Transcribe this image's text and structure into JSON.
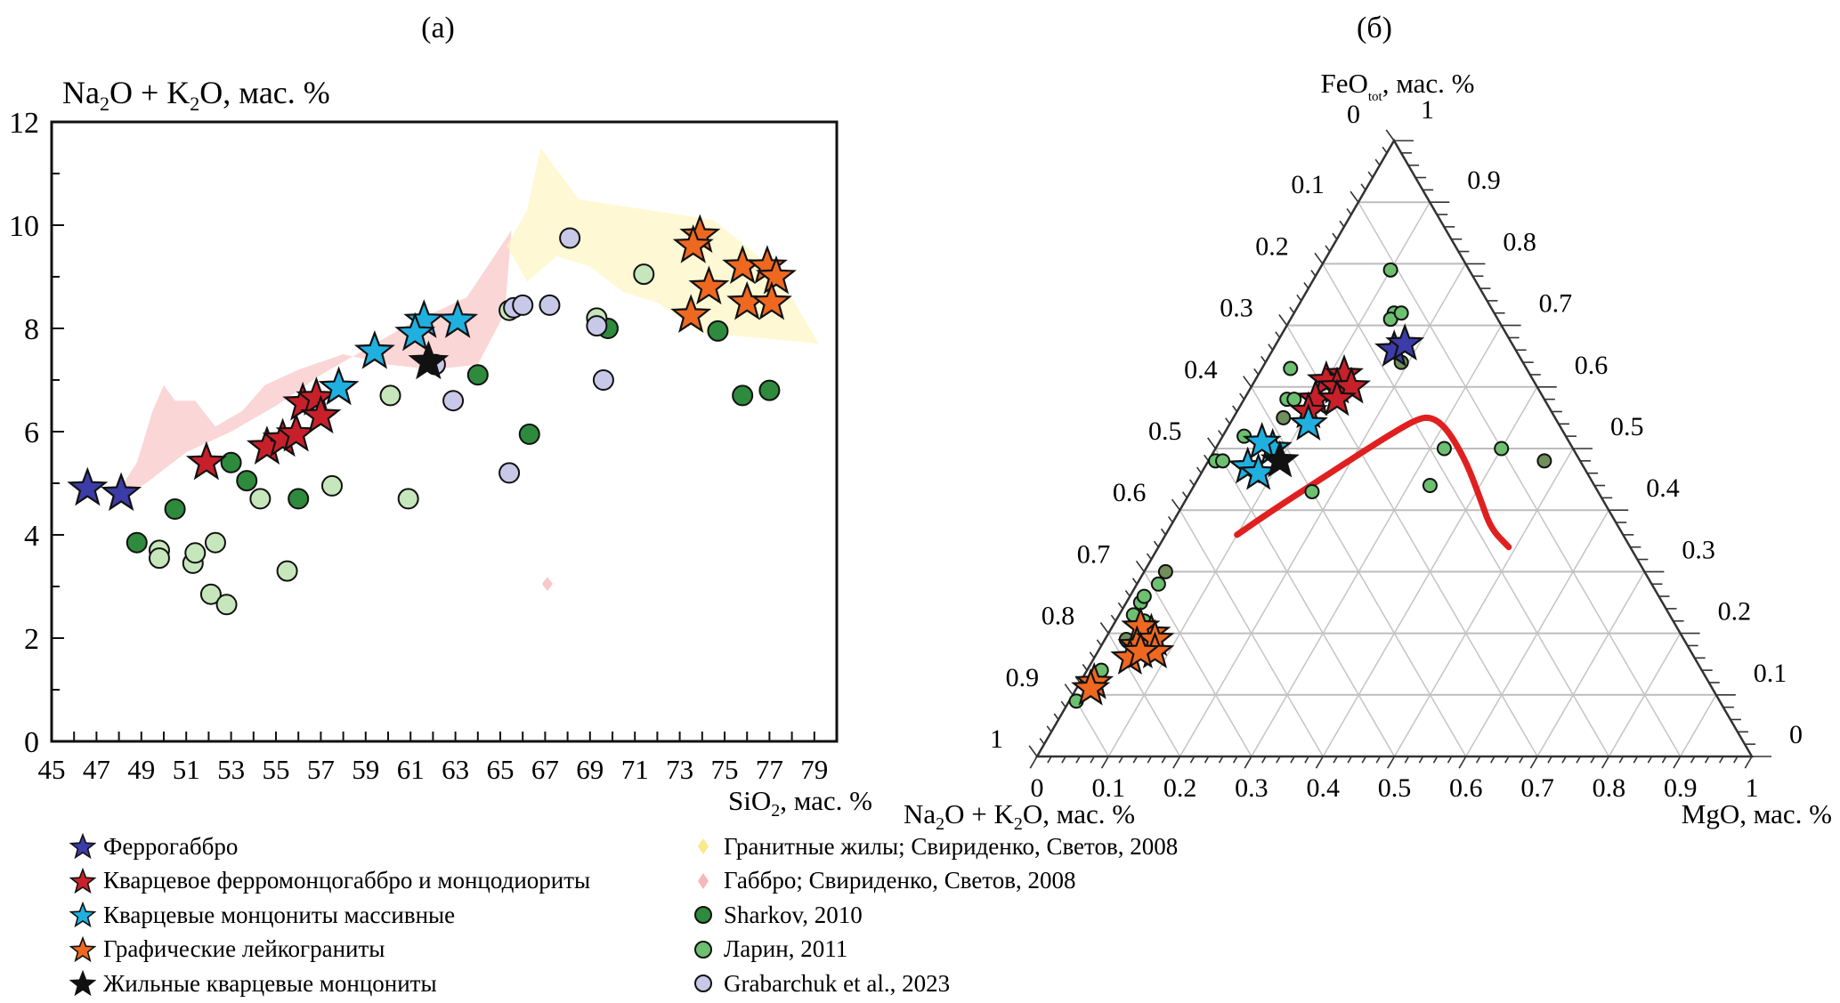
{
  "chart_data": [
    {
      "type": "scatter",
      "panel_label": "(a)",
      "title": "",
      "ylabel": "Na2O + K2O, мас. %",
      "ylabel_parts": {
        "a": "Na",
        "a_sub": "2",
        "b": "O + K",
        "b_sub": "2",
        "c": "O, мас. %"
      },
      "xlabel": "SiO2, мас. %",
      "xlabel_parts": {
        "a": "SiO",
        "a_sub": "2",
        "b": ", мас. %"
      },
      "xlim": [
        45,
        80
      ],
      "ylim": [
        0,
        12
      ],
      "xticks": [
        45,
        47,
        49,
        51,
        53,
        55,
        57,
        59,
        61,
        63,
        65,
        67,
        69,
        71,
        73,
        75,
        77,
        79
      ],
      "yticks": [
        0,
        2,
        4,
        6,
        8,
        10,
        12
      ],
      "grid": false,
      "fields": [
        {
          "name": "Габбро; Свириденко, Светов, 2008",
          "color": "#f9c8c8",
          "outline": [
            [
              47.6,
              4.6
            ],
            [
              49.2,
              5.0
            ],
            [
              51.0,
              5.6
            ],
            [
              53.0,
              6.0
            ],
            [
              55.0,
              6.5
            ],
            [
              57.0,
              7.1
            ],
            [
              59.0,
              7.6
            ],
            [
              61.0,
              8.1
            ],
            [
              63.5,
              8.6
            ],
            [
              65.5,
              9.9
            ],
            [
              65.2,
              8.3
            ],
            [
              64.0,
              7.3
            ],
            [
              62.0,
              7.2
            ],
            [
              60.0,
              7.3
            ],
            [
              58.0,
              7.5
            ],
            [
              56.0,
              7.2
            ],
            [
              54.5,
              6.9
            ],
            [
              53.5,
              6.4
            ],
            [
              52.3,
              6.1
            ],
            [
              51.4,
              6.6
            ],
            [
              50.5,
              6.6
            ],
            [
              50.0,
              6.9
            ],
            [
              49.5,
              6.4
            ],
            [
              48.8,
              5.4
            ],
            [
              47.6,
              4.6
            ]
          ]
        },
        {
          "name": "Гранитные жилы; Свириденко, Светов, 2008",
          "color": "#fdf5c6",
          "outline": [
            [
              65.3,
              9.6
            ],
            [
              66.2,
              10.3
            ],
            [
              66.8,
              11.5
            ],
            [
              68.5,
              10.5
            ],
            [
              71.5,
              10.3
            ],
            [
              74.5,
              10.1
            ],
            [
              76.5,
              9.4
            ],
            [
              78.0,
              8.6
            ],
            [
              79.2,
              7.7
            ],
            [
              77.0,
              7.8
            ],
            [
              74.0,
              7.9
            ],
            [
              72.0,
              8.5
            ],
            [
              70.5,
              8.7
            ],
            [
              69.0,
              9.2
            ],
            [
              67.5,
              9.4
            ],
            [
              66.2,
              8.9
            ],
            [
              65.3,
              9.6
            ]
          ]
        }
      ],
      "series": [
        {
          "name": "Феррогаббро",
          "marker": "star",
          "color": "#3c3ca8",
          "points": [
            [
              46.6,
              4.9
            ],
            [
              48.1,
              4.8
            ]
          ]
        },
        {
          "name": "Кварцевое ферромонцогаббро и монцодиориты",
          "marker": "star",
          "color": "#c8202a",
          "points": [
            [
              51.9,
              5.4
            ],
            [
              54.6,
              5.7
            ],
            [
              55.3,
              5.85
            ],
            [
              55.9,
              5.95
            ],
            [
              56.2,
              6.55
            ],
            [
              56.8,
              6.65
            ],
            [
              57.0,
              6.3
            ]
          ]
        },
        {
          "name": "Кварцевые монцониты массивные",
          "marker": "star",
          "color": "#1fb0e0",
          "points": [
            [
              57.8,
              6.85
            ],
            [
              59.4,
              7.55
            ],
            [
              61.6,
              8.15
            ],
            [
              61.2,
              7.9
            ],
            [
              63.1,
              8.15
            ]
          ]
        },
        {
          "name": "Графические лейкограниты",
          "marker": "star",
          "color": "#ee6820",
          "points": [
            [
              73.9,
              9.8
            ],
            [
              73.6,
              9.6
            ],
            [
              74.3,
              8.8
            ],
            [
              73.5,
              8.25
            ],
            [
              75.8,
              9.2
            ],
            [
              76.9,
              9.2
            ],
            [
              77.3,
              9.0
            ],
            [
              76.0,
              8.5
            ],
            [
              77.1,
              8.5
            ]
          ]
        },
        {
          "name": "Жильные кварцевые монцониты",
          "marker": "star",
          "color": "#111111",
          "points": [
            [
              61.8,
              7.35
            ]
          ]
        },
        {
          "name": "Sharkov, 2010",
          "marker": "circle",
          "color": "#2e8a3c",
          "points": [
            [
              48.8,
              3.85
            ],
            [
              50.5,
              4.5
            ],
            [
              53.0,
              5.4
            ],
            [
              53.7,
              5.05
            ],
            [
              56.0,
              4.7
            ],
            [
              64.0,
              7.1
            ],
            [
              66.3,
              5.95
            ],
            [
              69.8,
              8.0
            ],
            [
              74.7,
              7.95
            ],
            [
              75.8,
              6.7
            ],
            [
              77.0,
              6.8
            ]
          ]
        },
        {
          "name": "Ларин, 2011",
          "marker": "circle",
          "color": "#c6e6bc",
          "points": [
            [
              49.8,
              3.7
            ],
            [
              49.8,
              3.55
            ],
            [
              51.3,
              3.45
            ],
            [
              51.4,
              3.65
            ],
            [
              52.1,
              2.85
            ],
            [
              52.3,
              3.85
            ],
            [
              52.8,
              2.65
            ],
            [
              54.3,
              4.7
            ],
            [
              55.5,
              3.3
            ],
            [
              57.5,
              4.95
            ],
            [
              60.1,
              6.7
            ],
            [
              60.9,
              4.7
            ],
            [
              65.4,
              8.35
            ],
            [
              69.3,
              8.2
            ],
            [
              71.4,
              9.05
            ]
          ]
        },
        {
          "name": "Grabarchuk et al., 2023",
          "marker": "circle",
          "color": "#c8c8e8",
          "points": [
            [
              62.1,
              7.3
            ],
            [
              62.9,
              6.6
            ],
            [
              65.6,
              8.4
            ],
            [
              66.0,
              8.45
            ],
            [
              67.2,
              8.45
            ],
            [
              65.4,
              5.2
            ],
            [
              68.1,
              9.75
            ],
            [
              69.3,
              8.05
            ],
            [
              69.6,
              7.0
            ]
          ]
        }
      ],
      "outliers": [
        {
          "series": "Габбро; Свириденко, Светов, 2008",
          "points": [
            [
              67.1,
              3.05
            ]
          ]
        }
      ]
    },
    {
      "type": "scatter",
      "subtype": "ternary",
      "panel_label": "(б)",
      "apex_top_label": "FeOtot, мас. %",
      "apex_top_parts": {
        "a": "FeO",
        "a_sub": "tot",
        "b": ", мас. %"
      },
      "bottom_left_label": "Na2O + K2O, мас. %",
      "bottom_left_parts": {
        "a": "Na",
        "a_sub": "2",
        "b": "O + K",
        "b_sub": "2",
        "c": "O, мас. %"
      },
      "bottom_right_label": "MgO, мас. %",
      "axis_ticks": [
        "0",
        "0.1",
        "0.2",
        "0.3",
        "0.4",
        "0.5",
        "0.6",
        "0.7",
        "0.8",
        "0.9",
        "1"
      ],
      "grid": true,
      "components_order": [
        "FeO",
        "MgO",
        "NaK"
      ],
      "boundary_line": {
        "color": "#e02020",
        "points": [
          [
            0.36,
            0.1,
            0.54
          ],
          [
            0.4,
            0.13,
            0.47
          ],
          [
            0.46,
            0.18,
            0.36
          ],
          [
            0.52,
            0.23,
            0.25
          ],
          [
            0.55,
            0.26,
            0.19
          ],
          [
            0.55,
            0.28,
            0.17
          ],
          [
            0.53,
            0.31,
            0.16
          ],
          [
            0.48,
            0.36,
            0.16
          ],
          [
            0.42,
            0.41,
            0.17
          ],
          [
            0.37,
            0.45,
            0.18
          ],
          [
            0.34,
            0.49,
            0.17
          ]
        ]
      },
      "series": [
        {
          "name": "Феррогаббро",
          "marker": "star",
          "color": "#3c3ca8",
          "points": [
            [
              0.66,
              0.17,
              0.17
            ],
            [
              0.67,
              0.18,
              0.15
            ]
          ]
        },
        {
          "name": "Кварцевое ферромонцогаббро и монцодиориты",
          "marker": "star",
          "color": "#c8202a",
          "points": [
            [
              0.61,
              0.1,
              0.29
            ],
            [
              0.62,
              0.12,
              0.26
            ],
            [
              0.6,
              0.12,
              0.28
            ],
            [
              0.58,
              0.1,
              0.32
            ],
            [
              0.56,
              0.1,
              0.34
            ],
            [
              0.6,
              0.14,
              0.26
            ],
            [
              0.58,
              0.13,
              0.29
            ]
          ]
        },
        {
          "name": "Кварцевые монцониты массивные",
          "marker": "star",
          "color": "#1fb0e0",
          "points": [
            [
              0.54,
              0.11,
              0.35
            ],
            [
              0.5,
              0.08,
              0.42
            ],
            [
              0.51,
              0.06,
              0.43
            ],
            [
              0.47,
              0.06,
              0.47
            ],
            [
              0.46,
              0.08,
              0.46
            ]
          ]
        },
        {
          "name": "Графические лейкограниты",
          "marker": "star",
          "color": "#ee6820",
          "points": [
            [
              0.2,
              0.06,
              0.74
            ],
            [
              0.21,
              0.04,
              0.75
            ],
            [
              0.18,
              0.05,
              0.77
            ],
            [
              0.16,
              0.05,
              0.79
            ],
            [
              0.19,
              0.07,
              0.74
            ],
            [
              0.17,
              0.08,
              0.75
            ],
            [
              0.17,
              0.06,
              0.77
            ],
            [
              0.12,
              0.02,
              0.86
            ],
            [
              0.11,
              0.02,
              0.87
            ]
          ]
        },
        {
          "name": "Жильные кварцевые монцониты",
          "marker": "star",
          "color": "#111111",
          "points": [
            [
              0.48,
              0.1,
              0.42
            ]
          ]
        },
        {
          "name": "Sharkov, 2010",
          "marker": "circle",
          "color": "#6f8f5c",
          "points": [
            [
              0.64,
              0.19,
              0.17
            ],
            [
              0.48,
              0.47,
              0.05
            ],
            [
              0.55,
              0.07,
              0.38
            ],
            [
              0.3,
              0.03,
              0.67
            ],
            [
              0.19,
              0.03,
              0.78
            ]
          ]
        },
        {
          "name": "Ларин, 2011",
          "marker": "circle",
          "color": "#6cc070",
          "points": [
            [
              0.79,
              0.1,
              0.11
            ],
            [
              0.72,
              0.14,
              0.14
            ],
            [
              0.71,
              0.14,
              0.15
            ],
            [
              0.72,
              0.15,
              0.13
            ],
            [
              0.63,
              0.04,
              0.33
            ],
            [
              0.58,
              0.06,
              0.36
            ],
            [
              0.58,
              0.07,
              0.35
            ],
            [
              0.52,
              0.03,
              0.45
            ],
            [
              0.48,
              0.01,
              0.51
            ],
            [
              0.48,
              0.02,
              0.5
            ],
            [
              0.5,
              0.32,
              0.18
            ],
            [
              0.5,
              0.4,
              0.1
            ],
            [
              0.44,
              0.33,
              0.23
            ],
            [
              0.43,
              0.17,
              0.4
            ],
            [
              0.28,
              0.03,
              0.69
            ],
            [
              0.25,
              0.02,
              0.73
            ],
            [
              0.26,
              0.02,
              0.72
            ],
            [
              0.23,
              0.02,
              0.75
            ],
            [
              0.22,
              0.04,
              0.74
            ],
            [
              0.14,
              0.02,
              0.84
            ],
            [
              0.09,
              0.01,
              0.9
            ]
          ]
        }
      ]
    }
  ],
  "legend": {
    "left": [
      {
        "label": "Феррогаббро",
        "marker": "star",
        "color": "#3c3ca8"
      },
      {
        "label": "Кварцевое ферромонцогаббро и монцодиориты",
        "marker": "star",
        "color": "#c8202a"
      },
      {
        "label": "Кварцевые монцониты массивные",
        "marker": "star",
        "color": "#1fb0e0"
      },
      {
        "label": "Графические лейкограниты",
        "marker": "star",
        "color": "#ee6820"
      },
      {
        "label": "Жильные кварцевые монцониты",
        "marker": "star",
        "color": "#111111"
      }
    ],
    "right": [
      {
        "label": "Гранитные жилы; Свириденко, Светов, 2008",
        "marker": "diamond",
        "color": "#fbe98a"
      },
      {
        "label": "Габбро; Свириденко, Светов, 2008",
        "marker": "diamond",
        "color": "#f6b8b8"
      },
      {
        "label": "Sharkov, 2010",
        "marker": "circle",
        "color": "#2e8a3c"
      },
      {
        "label": "Ларин, 2011",
        "marker": "circle",
        "color": "#6cc070"
      },
      {
        "label": "Grabarchuk et al., 2023",
        "marker": "circle",
        "color": "#c8c8e8"
      }
    ]
  }
}
